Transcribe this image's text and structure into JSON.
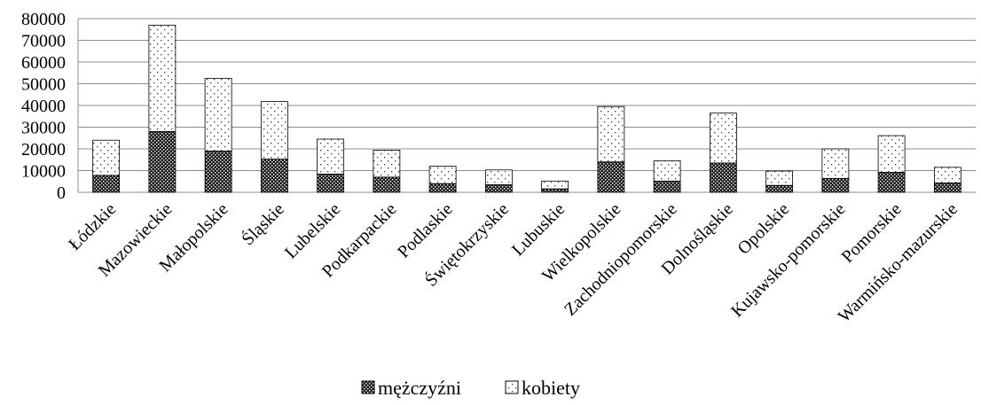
{
  "chart_data": {
    "type": "bar",
    "stacked": true,
    "categories": [
      "Łódzkie",
      "Mazowieckie",
      "Małopolskie",
      "Śląskie",
      "Lubelskie",
      "Podkarpackie",
      "Podlaskie",
      "Świętokrzyskie",
      "Lubuskie",
      "Wielkopolskie",
      "Zachodniopomorskie",
      "Dolnośląskie",
      "Opolskie",
      "Kujawsko-pomorskie",
      "Pomorskie",
      "Warmińsko-mazurskie"
    ],
    "series": [
      {
        "name": "mężczyźni",
        "values": [
          7800,
          28000,
          19000,
          15300,
          8400,
          7000,
          4000,
          3500,
          1600,
          14000,
          5200,
          13500,
          3200,
          6400,
          9200,
          4300
        ],
        "pattern": "dark-dots",
        "color": "#000000"
      },
      {
        "name": "kobiety",
        "values": [
          16200,
          49000,
          33500,
          26500,
          16100,
          12400,
          8000,
          6800,
          3600,
          25500,
          9300,
          23000,
          6600,
          13600,
          16900,
          7200
        ],
        "pattern": "light-dots",
        "color": "#ffffff"
      }
    ],
    "yticks": [
      0,
      10000,
      20000,
      30000,
      40000,
      50000,
      60000,
      70000,
      80000
    ],
    "ylim": [
      0,
      80000
    ],
    "grid": true,
    "legend_position": "bottom"
  }
}
